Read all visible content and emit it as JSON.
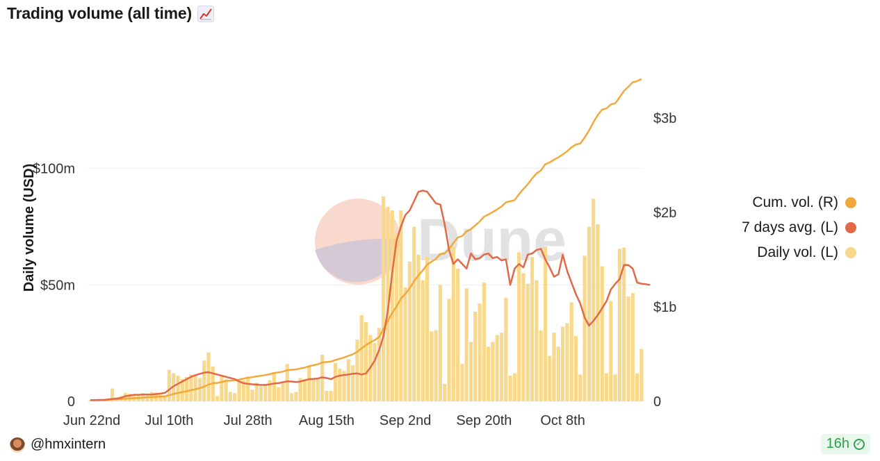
{
  "title": "Trading volume (all time)",
  "title_icon": "chart-increasing-icon",
  "author": "@hmxintern",
  "freshness": "16h",
  "watermark": "Dune",
  "colors": {
    "daily": "#f8d98b",
    "avg": "#e16948",
    "cum": "#f2a93b",
    "grid": "#eeeeee"
  },
  "legend": [
    {
      "label": "Cum. vol. (R)",
      "color": "#f2a93b"
    },
    {
      "label": "7 days avg. (L)",
      "color": "#e16948"
    },
    {
      "label": "Daily vol. (L)",
      "color": "#f8d98b"
    }
  ],
  "chart_data": {
    "type": "bar",
    "title": "Trading volume (all time)",
    "ylabel": "Daily volume (USD)",
    "ylim": [
      0,
      150000000
    ],
    "y2lim": [
      0,
      3700000000
    ],
    "y_ticks": [
      {
        "value": 0,
        "label": "0"
      },
      {
        "value": 50000000,
        "label": "$50m"
      },
      {
        "value": 100000000,
        "label": "$100m"
      }
    ],
    "y2_ticks": [
      {
        "value": 0,
        "label": "0"
      },
      {
        "value": 1000000000,
        "label": "$1b"
      },
      {
        "value": 2000000000,
        "label": "$2b"
      },
      {
        "value": 3000000000,
        "label": "$3b"
      }
    ],
    "x_ticks": [
      {
        "index": 0,
        "label": "Jun 22nd"
      },
      {
        "index": 18,
        "label": "Jul 10th"
      },
      {
        "index": 36,
        "label": "Jul 28th"
      },
      {
        "index": 54,
        "label": "Aug 15th"
      },
      {
        "index": 72,
        "label": "Sep 2nd"
      },
      {
        "index": 90,
        "label": "Sep 20th"
      },
      {
        "index": 108,
        "label": "Oct 8th"
      }
    ],
    "grid": true,
    "legend_position": "right",
    "series": [
      {
        "name": "Daily vol. (L)",
        "type": "bar",
        "axis": "left",
        "values": [
          0.5,
          0.6,
          0.5,
          0.6,
          0.8,
          5.5,
          1.0,
          2.3,
          3.5,
          3.2,
          3.0,
          2.5,
          3.5,
          2.8,
          4.0,
          3.8,
          3.5,
          2.5,
          13.5,
          12.0,
          11.0,
          9.5,
          10.5,
          11.5,
          11.0,
          10.0,
          17.5,
          21.0,
          15.0,
          2.2,
          11.0,
          9.5,
          4.0,
          3.5,
          9.5,
          9.0,
          10.5,
          5.0,
          8.0,
          6.5,
          7.5,
          9.0,
          12.5,
          6.0,
          8.5,
          16.0,
          3.5,
          4.0,
          10.0,
          9.5,
          15.0,
          9.5,
          10.0,
          20.0,
          4.5,
          4.5,
          16.5,
          14.0,
          13.0,
          18.0,
          15.5,
          26.5,
          37.0,
          34.0,
          28.5,
          25.0,
          31.5,
          88.0,
          83.5,
          82.0,
          72.0,
          82.0,
          49.0,
          60.0,
          75.0,
          63.0,
          52.0,
          62.0,
          30.0,
          30.5,
          50.0,
          7.5,
          44.0,
          66.5,
          57.0,
          16.0,
          48.5,
          25.5,
          38.5,
          42.0,
          51.0,
          23.5,
          25.5,
          28.5,
          29.5,
          44.5,
          11.0,
          12.0,
          64.0,
          55.0,
          50.5,
          62.0,
          52.0,
          30.5,
          66.5,
          19.5,
          29.5,
          23.5,
          32.0,
          33.5,
          42.5,
          28.0,
          11.5,
          62.5,
          75.0,
          87.0,
          76.0,
          58.0,
          12.0,
          43.0,
          11.5,
          65.5,
          66.0,
          45.0,
          46.5,
          12.0,
          22.5
        ],
        "unit": "millions USD"
      },
      {
        "name": "7 days avg. (L)",
        "type": "line",
        "axis": "left",
        "values": [
          0.5,
          0.5,
          0.6,
          0.6,
          0.8,
          1.0,
          1.2,
          1.5,
          2.2,
          2.5,
          2.8,
          2.8,
          2.9,
          2.9,
          2.9,
          3.1,
          3.3,
          3.6,
          5.0,
          6.5,
          7.5,
          8.5,
          9.5,
          10.5,
          11.2,
          11.8,
          12.3,
          12.5,
          12.0,
          11.5,
          11.0,
          10.5,
          10.0,
          9.5,
          8.5,
          7.8,
          7.5,
          7.3,
          7.2,
          7.0,
          7.0,
          7.3,
          7.6,
          7.8,
          8.2,
          8.6,
          8.5,
          8.3,
          8.5,
          9.0,
          9.5,
          9.6,
          9.8,
          10.3,
          10.0,
          9.5,
          10.5,
          11.0,
          11.3,
          11.5,
          11.8,
          12.0,
          11.5,
          12.0,
          14.5,
          17.5,
          22.0,
          28.0,
          39.0,
          55.0,
          69.0,
          75.0,
          80.0,
          82.0,
          86.0,
          90.0,
          90.5,
          90.0,
          87.5,
          85.0,
          84.5,
          76.0,
          65.0,
          59.0,
          61.0,
          59.0,
          57.0,
          63.5,
          61.0,
          61.5,
          63.0,
          63.5,
          61.5,
          62.0,
          60.5,
          61.0,
          50.0,
          57.0,
          59.0,
          57.5,
          63.0,
          63.5,
          65.0,
          65.5,
          61.0,
          57.5,
          53.5,
          54.5,
          63.0,
          56.0,
          51.0,
          46.0,
          42.0,
          36.0,
          32.5,
          34.5,
          37.0,
          40.0,
          43.0,
          48.0,
          50.5,
          52.5,
          58.5,
          58.5,
          57.0,
          51.0,
          50.5,
          50.3,
          50.0
        ],
        "unit": "millions USD"
      },
      {
        "name": "Cum. vol. (R)",
        "type": "line",
        "axis": "right",
        "values": [
          0.01,
          0.011,
          0.012,
          0.013,
          0.015,
          0.02,
          0.021,
          0.024,
          0.027,
          0.03,
          0.033,
          0.035,
          0.038,
          0.041,
          0.044,
          0.047,
          0.05,
          0.052,
          0.065,
          0.077,
          0.088,
          0.097,
          0.107,
          0.118,
          0.129,
          0.139,
          0.156,
          0.177,
          0.192,
          0.194,
          0.205,
          0.214,
          0.218,
          0.222,
          0.231,
          0.24,
          0.251,
          0.256,
          0.264,
          0.271,
          0.278,
          0.287,
          0.3,
          0.306,
          0.314,
          0.33,
          0.334,
          0.338,
          0.348,
          0.357,
          0.372,
          0.382,
          0.392,
          0.412,
          0.416,
          0.421,
          0.437,
          0.451,
          0.464,
          0.482,
          0.498,
          0.524,
          0.561,
          0.595,
          0.624,
          0.649,
          0.68,
          0.768,
          0.852,
          0.934,
          1.006,
          1.088,
          1.137,
          1.197,
          1.272,
          1.335,
          1.387,
          1.449,
          1.479,
          1.51,
          1.56,
          1.567,
          1.611,
          1.678,
          1.735,
          1.751,
          1.799,
          1.825,
          1.863,
          1.905,
          1.956,
          1.98,
          2.005,
          2.034,
          2.063,
          2.108,
          2.119,
          2.131,
          2.195,
          2.25,
          2.3,
          2.362,
          2.414,
          2.445,
          2.511,
          2.531,
          2.56,
          2.584,
          2.616,
          2.649,
          2.692,
          2.72,
          2.731,
          2.794,
          2.869,
          2.956,
          3.032,
          3.09,
          3.102,
          3.145,
          3.157,
          3.222,
          3.288,
          3.333,
          3.38,
          3.392,
          3.415
        ],
        "unit": "billions USD"
      }
    ]
  }
}
